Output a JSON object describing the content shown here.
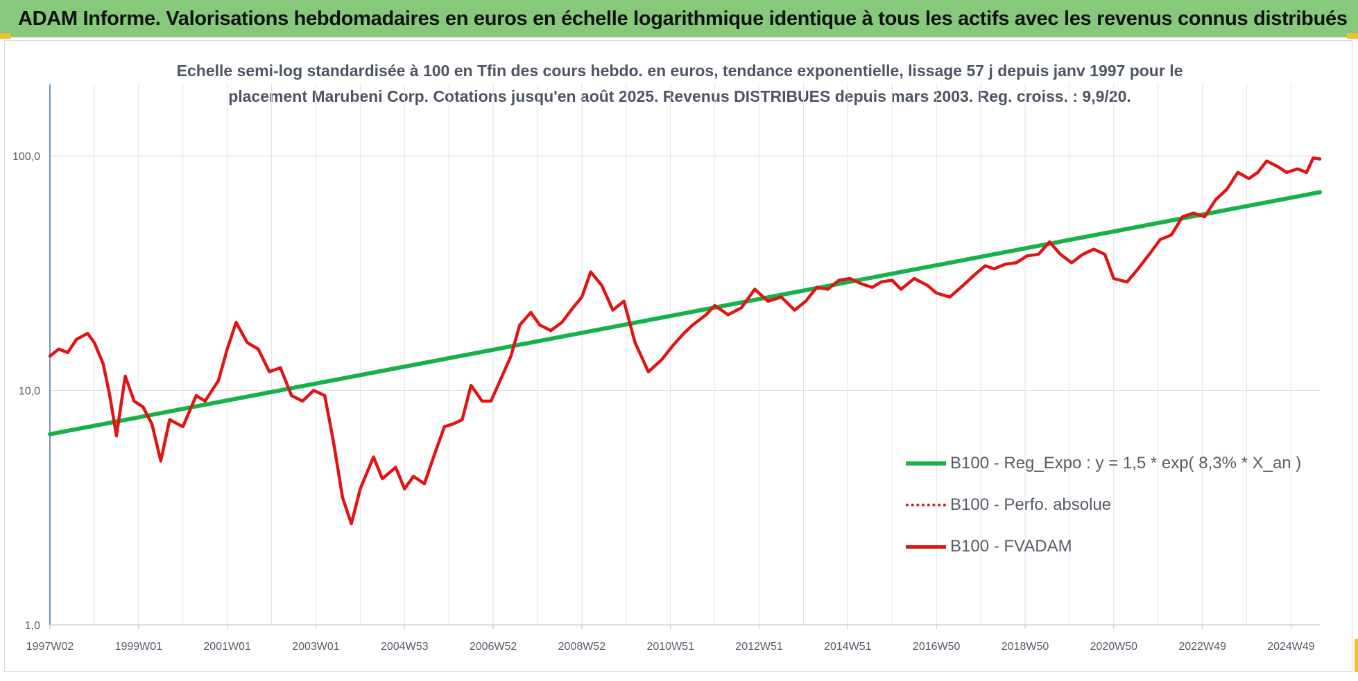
{
  "header": {
    "title": "ADAM Informe. Valorisations hebdomadaires en euros en échelle logarithmique identique à tous les actifs avec les revenus connus distribués"
  },
  "colors": {
    "banner": "#86c97a",
    "regression": "#17b14a",
    "fvadam": "#e11414",
    "accent_corner": "#f2c12e"
  },
  "chart_data": {
    "type": "line",
    "title_line1": "Echelle semi-log standardisée à 100 en Tfin des cours hebdo. en euros, tendance exponentielle, lissage 57 j depuis janv 1997 pour le",
    "title_line2": "placement Marubeni Corp. Cotations jusqu'en août 2025.  Revenus DISTRIBUES depuis mars 2003. Reg. croiss. : 9,9/20.",
    "y_scale": "log",
    "ylim": [
      1,
      150
    ],
    "y_ticks": [
      {
        "value": 1,
        "label": "1,0"
      },
      {
        "value": 10,
        "label": "10,0"
      },
      {
        "value": 100,
        "label": "100,0"
      }
    ],
    "xlim": [
      1997.0,
      2025.65
    ],
    "x_ticks": [
      {
        "value": 1997.0,
        "label": "1997W02"
      },
      {
        "value": 1999.0,
        "label": "1999W01"
      },
      {
        "value": 2001.0,
        "label": "2001W01"
      },
      {
        "value": 2003.0,
        "label": "2003W01"
      },
      {
        "value": 2005.0,
        "label": "2004W53"
      },
      {
        "value": 2007.0,
        "label": "2006W52"
      },
      {
        "value": 2009.0,
        "label": "2008W52"
      },
      {
        "value": 2011.0,
        "label": "2010W51"
      },
      {
        "value": 2013.0,
        "label": "2012W51"
      },
      {
        "value": 2015.0,
        "label": "2014W51"
      },
      {
        "value": 2017.0,
        "label": "2016W50"
      },
      {
        "value": 2019.0,
        "label": "2018W50"
      },
      {
        "value": 2021.0,
        "label": "2020W50"
      },
      {
        "value": 2023.0,
        "label": "2022W49"
      },
      {
        "value": 2025.0,
        "label": "2024W49"
      }
    ],
    "grid": true,
    "legend_position": "right",
    "series": [
      {
        "name": "B100 - Reg_Expo : y = 1,5 * exp( 8,3% *  X_an )",
        "color": "#17b14a",
        "x": [
          1997.0,
          2025.65
        ],
        "y": [
          6.5,
          70.0
        ]
      },
      {
        "name": "B100 - Perfo. absolue",
        "color": "#e11414",
        "x": [],
        "y": []
      },
      {
        "name": "B100 - FVADAM",
        "color": "#e11414",
        "x": [
          1997.0,
          1997.2,
          1997.4,
          1997.6,
          1997.85,
          1998.0,
          1998.2,
          1998.35,
          1998.5,
          1998.7,
          1998.9,
          1999.1,
          1999.3,
          1999.5,
          1999.7,
          2000.0,
          2000.3,
          2000.5,
          2000.8,
          2001.0,
          2001.2,
          2001.45,
          2001.7,
          2001.95,
          2002.2,
          2002.45,
          2002.7,
          2002.95,
          2003.2,
          2003.4,
          2003.6,
          2003.8,
          2004.0,
          2004.3,
          2004.5,
          2004.8,
          2005.0,
          2005.2,
          2005.45,
          2005.7,
          2005.9,
          2006.1,
          2006.3,
          2006.5,
          2006.75,
          2006.95,
          2007.2,
          2007.4,
          2007.6,
          2007.85,
          2008.05,
          2008.3,
          2008.55,
          2008.8,
          2009.0,
          2009.2,
          2009.45,
          2009.7,
          2009.95,
          2010.2,
          2010.5,
          2010.8,
          2011.05,
          2011.3,
          2011.5,
          2011.8,
          2012.0,
          2012.3,
          2012.6,
          2012.9,
          2013.2,
          2013.5,
          2013.8,
          2014.05,
          2014.3,
          2014.55,
          2014.8,
          2015.05,
          2015.3,
          2015.55,
          2015.75,
          2016.0,
          2016.2,
          2016.5,
          2016.8,
          2017.0,
          2017.3,
          2017.6,
          2017.85,
          2018.1,
          2018.3,
          2018.55,
          2018.8,
          2019.05,
          2019.3,
          2019.55,
          2019.8,
          2020.05,
          2020.3,
          2020.55,
          2020.8,
          2021.0,
          2021.3,
          2021.55,
          2021.8,
          2022.05,
          2022.3,
          2022.55,
          2022.8,
          2023.05,
          2023.3,
          2023.55,
          2023.8,
          2024.05,
          2024.25,
          2024.45,
          2024.7,
          2024.9,
          2025.15,
          2025.35,
          2025.5,
          2025.65
        ],
        "y": [
          14.0,
          15.0,
          14.5,
          16.5,
          17.5,
          16.0,
          13.0,
          9.5,
          6.4,
          11.5,
          9.0,
          8.5,
          7.2,
          5.0,
          7.5,
          7.0,
          9.5,
          9.0,
          11.0,
          15.0,
          19.5,
          16.0,
          15.0,
          12.0,
          12.5,
          9.5,
          9.0,
          10.0,
          9.5,
          6.0,
          3.5,
          2.7,
          3.8,
          5.2,
          4.2,
          4.7,
          3.8,
          4.3,
          4.0,
          5.5,
          7.0,
          7.2,
          7.5,
          10.5,
          9.0,
          9.0,
          11.5,
          14.0,
          19.0,
          21.5,
          19.0,
          18.0,
          19.5,
          22.5,
          25.0,
          32.0,
          28.0,
          22.0,
          24.0,
          16.0,
          12.0,
          13.5,
          15.5,
          17.5,
          19.0,
          21.0,
          23.0,
          21.0,
          22.5,
          27.0,
          24.0,
          25.0,
          22.0,
          24.0,
          27.5,
          27.0,
          29.5,
          30.0,
          28.5,
          27.5,
          29.0,
          29.5,
          27.0,
          30.0,
          28.0,
          26.0,
          25.0,
          28.0,
          31.0,
          34.0,
          33.0,
          34.5,
          35.0,
          37.5,
          38.0,
          43.0,
          38.0,
          35.0,
          38.0,
          40.0,
          38.0,
          30.0,
          29.0,
          33.0,
          38.0,
          44.0,
          46.0,
          55.0,
          57.0,
          55.0,
          65.0,
          72.0,
          85.0,
          80.0,
          85.0,
          95.0,
          90.0,
          85.0,
          88.0,
          85.0,
          98.0,
          97.0
        ]
      }
    ]
  }
}
